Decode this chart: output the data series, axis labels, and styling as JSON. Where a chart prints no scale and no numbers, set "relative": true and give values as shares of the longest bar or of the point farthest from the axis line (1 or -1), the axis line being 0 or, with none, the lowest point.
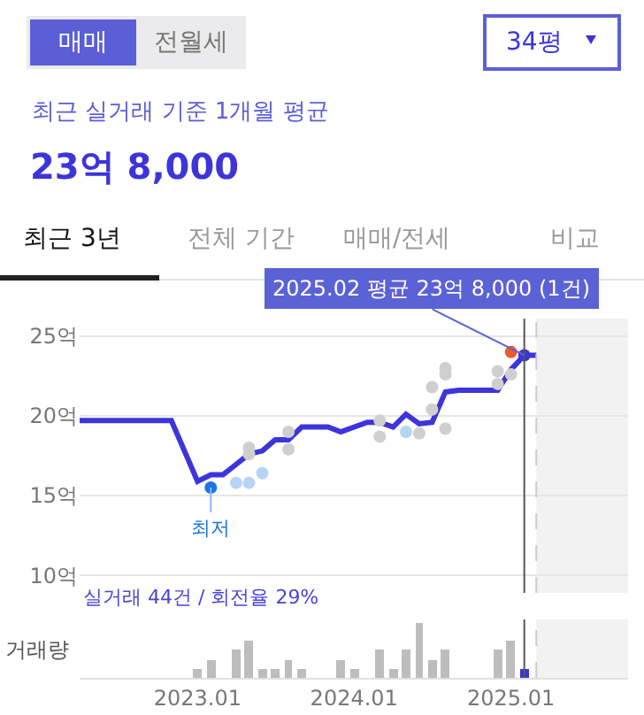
{
  "chart_data": [
    {
      "type": "other",
      "title": "23억 8,000",
      "subtitle": "최근 실거래 기준 1개월 평균",
      "annotations": [
        "매매",
        "전월세",
        "34평",
        "최근 3년",
        "전체 기간",
        "매매/전세",
        "비교"
      ]
    },
    {
      "type": "line",
      "xlim": [
        "2022-04",
        "2025-10"
      ],
      "ylim": [
        8.9,
        26.1
      ],
      "yticks": [
        {
          "value": 10,
          "label": "10억"
        },
        {
          "value": 15,
          "label": "15억"
        },
        {
          "value": 20,
          "label": "20억"
        },
        {
          "value": 25,
          "label": "25억"
        }
      ],
      "tick_labels": "y",
      "grid": "y",
      "series": [
        {
          "type": "line",
          "color": "#3d35d9",
          "marker": "none",
          "x": [
            "2022-04",
            "2022-11",
            "2023-01",
            "2023-02",
            "2023-03",
            "2023-05",
            "2023-06",
            "2023-07",
            "2023-08",
            "2023-09",
            "2023-11",
            "2023-12",
            "2024-02",
            "2024-03",
            "2024-04",
            "2024-05",
            "2024-06",
            "2024-07",
            "2024-08",
            "2024-09",
            "2024-12",
            "2025-01",
            "2025-02",
            "2025-03"
          ],
          "values": [
            19.7,
            19.7,
            15.9,
            16.3,
            16.3,
            17.6,
            17.8,
            18.5,
            18.5,
            19.3,
            19.3,
            19.0,
            19.6,
            19.6,
            19.3,
            20.1,
            19.5,
            19.6,
            21.5,
            21.6,
            21.6,
            22.9,
            23.8,
            23.8
          ]
        },
        {
          "type": "scatter",
          "color": "#cfcfcf",
          "marker": "circle",
          "x": [
            "2023-05",
            "2023-05",
            "2023-08",
            "2023-08",
            "2024-03",
            "2024-03",
            "2024-06",
            "2024-07",
            "2024-07",
            "2024-08",
            "2024-08",
            "2024-08",
            "2024-12",
            "2024-12",
            "2025-01"
          ],
          "values": [
            18.0,
            17.6,
            19.0,
            17.9,
            19.7,
            18.7,
            18.9,
            20.4,
            21.8,
            19.2,
            23.0,
            22.6,
            22.0,
            22.8,
            22.6
          ]
        },
        {
          "type": "scatter",
          "color": "#b8d4f5",
          "marker": "circle",
          "x": [
            "2023-04",
            "2023-05",
            "2023-06",
            "2024-05"
          ],
          "values": [
            15.8,
            15.8,
            16.4,
            19.0
          ]
        },
        {
          "type": "scatter",
          "color": "#f05a28",
          "marker": "circle",
          "x": [
            "2025-01"
          ],
          "values": [
            24.0
          ]
        },
        {
          "type": "scatter",
          "color": "#1a73e8",
          "marker": "circle",
          "x": [
            "2023-02"
          ],
          "values": [
            15.5
          ]
        },
        {
          "type": "scatter",
          "color": "#3d35d9",
          "marker": "circle",
          "x": [
            "2025-02"
          ],
          "values": [
            23.8
          ]
        }
      ],
      "ref_lines": [
        {
          "axis": "x",
          "value": "2025-02",
          "color": "#555555",
          "line_style": "solid"
        },
        {
          "axis": "x",
          "value": "2025-03",
          "color": "#cccccc",
          "line_style": "dashed"
        }
      ],
      "bands": [
        {
          "axis": "x",
          "from": "2025-03",
          "to": "2025-10",
          "color": "#f2f2f2"
        }
      ],
      "annotations": [
        {
          "text": "2025.02 평균 23억 8,000 (1건)",
          "x": "2025-02",
          "y": 23.8
        },
        {
          "text": "최저",
          "x": "2023-02",
          "y": 15.5
        }
      ]
    },
    {
      "type": "bar",
      "relative": true,
      "ylabel": "거래량",
      "tick_labels": "x",
      "grid": false,
      "xlim": [
        "2022-04",
        "2025-10"
      ],
      "xticks": [
        {
          "value": "2023-01",
          "label": "2023.01"
        },
        {
          "value": "2024-01",
          "label": "2024.01"
        },
        {
          "value": "2025-01",
          "label": "2025.01"
        }
      ],
      "x": [
        "2023-01",
        "2023-02",
        "2023-04",
        "2023-05",
        "2023-06",
        "2023-07",
        "2023-08",
        "2023-09",
        "2023-12",
        "2024-01",
        "2024-03",
        "2024-04",
        "2024-05",
        "2024-06",
        "2024-07",
        "2024-08",
        "2024-12",
        "2025-01",
        "2025-02"
      ],
      "values": [
        0.167,
        0.333,
        0.5,
        0.667,
        0.167,
        0.167,
        0.333,
        0.167,
        0.333,
        0.167,
        0.5,
        0.167,
        0.5,
        1,
        0.333,
        0.5,
        0.5,
        0.667,
        0.167
      ],
      "colors": [
        "#bdbdbd",
        "#bdbdbd",
        "#bdbdbd",
        "#bdbdbd",
        "#bdbdbd",
        "#bdbdbd",
        "#bdbdbd",
        "#bdbdbd",
        "#bdbdbd",
        "#bdbdbd",
        "#bdbdbd",
        "#bdbdbd",
        "#bdbdbd",
        "#bdbdbd",
        "#bdbdbd",
        "#bdbdbd",
        "#bdbdbd",
        "#bdbdbd",
        "#3d35d9"
      ],
      "ref_lines": [
        {
          "axis": "x",
          "value": "2025-02",
          "color": "#555555",
          "line_style": "solid"
        },
        {
          "axis": "x",
          "value": "2025-03",
          "color": "#cccccc",
          "line_style": "dashed"
        }
      ],
      "bands": [
        {
          "axis": "x",
          "from": "2025-03",
          "to": "2025-10",
          "color": "#f2f2f2"
        }
      ],
      "annotations": [
        "실거래 44건 / 회전율 29%"
      ]
    }
  ]
}
